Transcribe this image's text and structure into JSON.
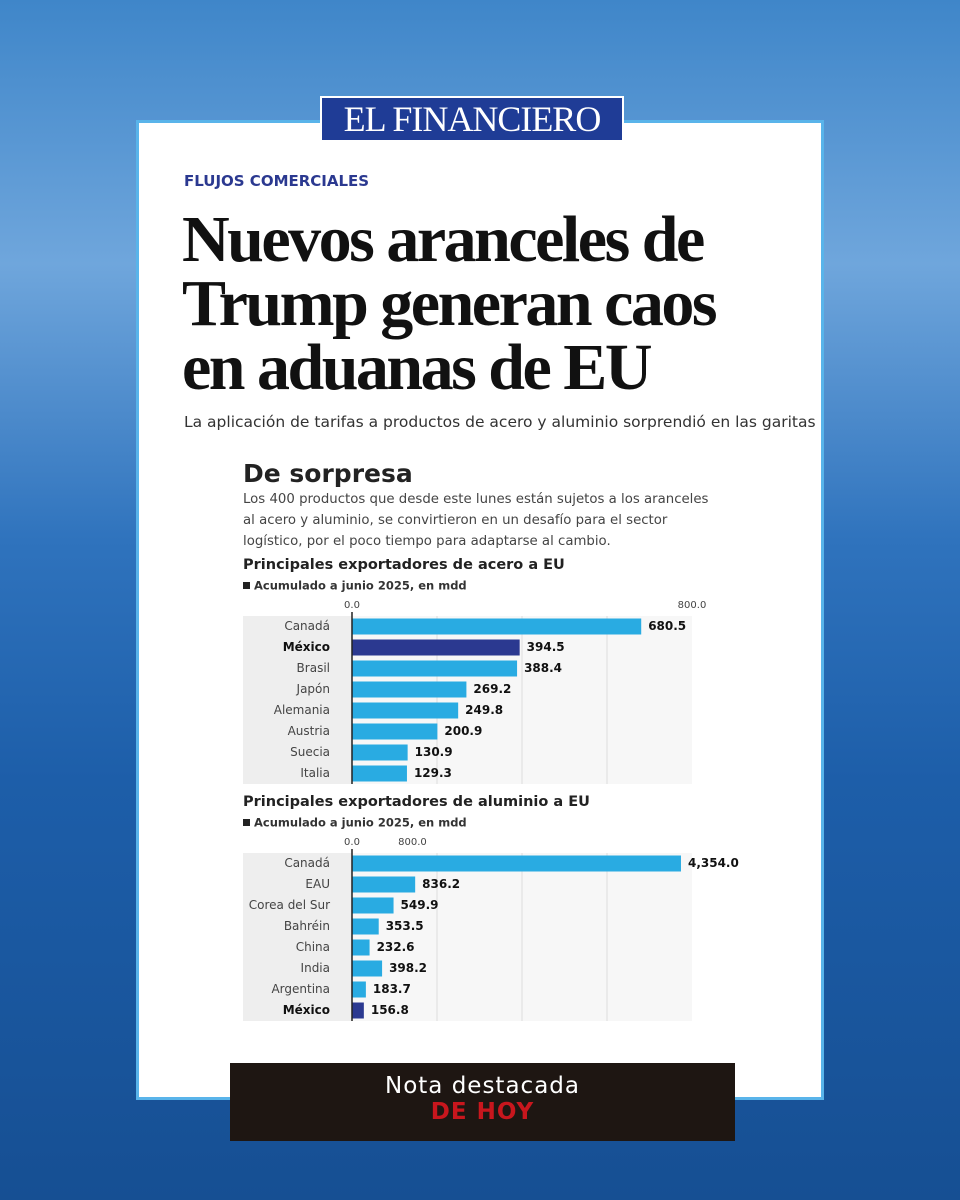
{
  "brand": "EL FINANCIERO",
  "kicker": "FLUJOS COMERCIALES",
  "headline": [
    "Nuevos aranceles de",
    "Trump generan caos",
    "en aduanas de EU"
  ],
  "subheadline": "La aplicación de tarifas a productos de acero y aluminio sorprendió en las garitas",
  "box": {
    "title": "De sorpresa",
    "text": "Los 400 productos que desde este lunes están sujetos a los aranceles al acero y aluminio, se convirtieron en un desafío para el sector logístico, por el poco tiempo para adaptarse al cambio."
  },
  "chart_data": [
    {
      "type": "bar",
      "orientation": "horizontal",
      "title": "Principales exportadores de acero a EU",
      "subtitle": "Acumulado a junio 2025, en mdd",
      "categories": [
        "Canadá",
        "México",
        "Brasil",
        "Japón",
        "Alemania",
        "Austria",
        "Suecia",
        "Italia"
      ],
      "values": [
        680.5,
        394.5,
        388.4,
        269.2,
        249.8,
        200.9,
        130.9,
        129.3
      ],
      "colors": [
        "#29abe2",
        "#2b3990",
        "#29abe2",
        "#29abe2",
        "#29abe2",
        "#29abe2",
        "#29abe2",
        "#29abe2"
      ],
      "xlim": [
        0,
        800
      ],
      "xticks": [
        {
          "value": 0,
          "label": "0.0"
        },
        {
          "value": 800,
          "label": "800.0"
        }
      ]
    },
    {
      "type": "bar",
      "orientation": "horizontal",
      "title": "Principales exportadores de aluminio a EU",
      "subtitle": "Acumulado a junio 2025, en mdd",
      "categories": [
        "Canadá",
        "EAU",
        "Corea del Sur",
        "Bahréin",
        "China",
        "India",
        "Argentina",
        "México"
      ],
      "values": [
        4354.0,
        836.2,
        549.9,
        353.5,
        232.6,
        398.2,
        183.7,
        156.8
      ],
      "value_labels": [
        "4,354.0",
        "836.2",
        "549.9",
        "353.5",
        "232.6",
        "398.2",
        "183.7",
        "156.8"
      ],
      "colors": [
        "#29abe2",
        "#29abe2",
        "#29abe2",
        "#29abe2",
        "#29abe2",
        "#29abe2",
        "#29abe2",
        "#2b3990"
      ],
      "xlim": [
        0,
        4500
      ],
      "xticks": [
        {
          "value": 0,
          "label": "0.0"
        },
        {
          "value": 800,
          "label": "800.0"
        }
      ]
    }
  ],
  "footer": {
    "line1": "Nota destacada",
    "line2": "DE HOY"
  }
}
